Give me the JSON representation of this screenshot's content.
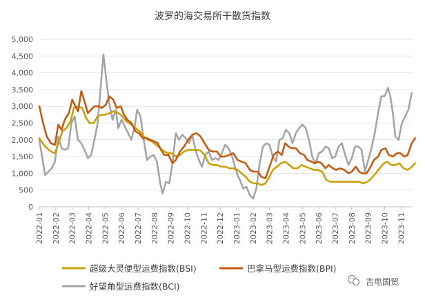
{
  "chart_data": {
    "type": "line",
    "title": "波罗的海交易所干散货指数",
    "xlabel": "",
    "ylabel": "",
    "ylim": [
      0,
      5000
    ],
    "y_ticks": [
      "0",
      "500",
      "1,000",
      "1,500",
      "2,000",
      "2,500",
      "3,000",
      "3,500",
      "4,000",
      "4,500",
      "5,000"
    ],
    "x_ticks": [
      "2022-01",
      "2022-02",
      "2022-03",
      "2022-04",
      "2022-05",
      "2022-06",
      "2022-07",
      "2022-08",
      "2022-09",
      "2022-10",
      "2022-11",
      "2022-12",
      "2023-01",
      "2023-02",
      "2023-03",
      "2023-04",
      "2023-05",
      "2023-06",
      "2023-07",
      "2023-08",
      "2023-09",
      "2023-10",
      "2023-11"
    ],
    "x_range": [
      0,
      22.7
    ],
    "grid": "horizontal",
    "legend_position": "bottom",
    "series": [
      {
        "name": "超级大灵便型运费指数(BSI)",
        "color": "#C9A008",
        "points": [
          [
            0,
            2050
          ],
          [
            0.35,
            1800
          ],
          [
            0.7,
            1650
          ],
          [
            0.95,
            1600
          ],
          [
            1.2,
            1950
          ],
          [
            1.4,
            2250
          ],
          [
            1.65,
            2350
          ],
          [
            1.9,
            2550
          ],
          [
            2.1,
            2950
          ],
          [
            2.35,
            3000
          ],
          [
            2.6,
            2950
          ],
          [
            2.85,
            2650
          ],
          [
            3.05,
            2500
          ],
          [
            3.3,
            2500
          ],
          [
            3.55,
            2700
          ],
          [
            3.8,
            2750
          ],
          [
            4.0,
            2750
          ],
          [
            4.3,
            2800
          ],
          [
            4.5,
            2850
          ],
          [
            4.8,
            2800
          ],
          [
            5.05,
            2700
          ],
          [
            5.3,
            2550
          ],
          [
            5.6,
            2450
          ],
          [
            5.85,
            2350
          ],
          [
            6.1,
            2250
          ],
          [
            6.35,
            2100
          ],
          [
            6.6,
            2000
          ],
          [
            6.85,
            1950
          ],
          [
            7.1,
            1850
          ],
          [
            7.35,
            1750
          ],
          [
            7.6,
            1650
          ],
          [
            7.85,
            1600
          ],
          [
            8.05,
            1600
          ],
          [
            8.3,
            1500
          ],
          [
            8.55,
            1550
          ],
          [
            8.8,
            1650
          ],
          [
            9.05,
            1700
          ],
          [
            9.3,
            1700
          ],
          [
            9.55,
            1700
          ],
          [
            9.8,
            1680
          ],
          [
            10.05,
            1550
          ],
          [
            10.3,
            1300
          ],
          [
            10.55,
            1250
          ],
          [
            10.8,
            1250
          ],
          [
            11.05,
            1200
          ],
          [
            11.3,
            1200
          ],
          [
            11.55,
            1150
          ],
          [
            11.8,
            1150
          ],
          [
            12.05,
            1100
          ],
          [
            12.3,
            1000
          ],
          [
            12.55,
            900
          ],
          [
            12.8,
            750
          ],
          [
            13.05,
            700
          ],
          [
            13.3,
            700
          ],
          [
            13.5,
            650
          ],
          [
            13.75,
            700
          ],
          [
            14.0,
            900
          ],
          [
            14.2,
            1100
          ],
          [
            14.45,
            1200
          ],
          [
            14.7,
            1300
          ],
          [
            14.95,
            1350
          ],
          [
            15.2,
            1250
          ],
          [
            15.45,
            1150
          ],
          [
            15.7,
            1150
          ],
          [
            15.95,
            1250
          ],
          [
            16.2,
            1200
          ],
          [
            16.45,
            1150
          ],
          [
            16.7,
            1100
          ],
          [
            16.95,
            1100
          ],
          [
            17.2,
            1050
          ],
          [
            17.45,
            800
          ],
          [
            17.7,
            750
          ],
          [
            17.95,
            750
          ],
          [
            18.2,
            750
          ],
          [
            18.45,
            750
          ],
          [
            18.7,
            750
          ],
          [
            18.95,
            750
          ],
          [
            19.2,
            750
          ],
          [
            19.45,
            750
          ],
          [
            19.7,
            700
          ],
          [
            19.95,
            750
          ],
          [
            20.2,
            850
          ],
          [
            20.45,
            1000
          ],
          [
            20.7,
            1150
          ],
          [
            20.95,
            1300
          ],
          [
            21.15,
            1350
          ],
          [
            21.4,
            1250
          ],
          [
            21.65,
            1250
          ],
          [
            21.9,
            1300
          ],
          [
            22.15,
            1150
          ],
          [
            22.4,
            1100
          ],
          [
            22.65,
            1200
          ],
          [
            22.85,
            1300
          ]
        ]
      },
      {
        "name": "巴拿马型运费指数(BPI)",
        "color": "#C55A11",
        "points": [
          [
            0,
            3000
          ],
          [
            0.2,
            2550
          ],
          [
            0.45,
            2100
          ],
          [
            0.7,
            1900
          ],
          [
            0.95,
            1850
          ],
          [
            1.15,
            2450
          ],
          [
            1.35,
            2300
          ],
          [
            1.55,
            2600
          ],
          [
            1.8,
            2800
          ],
          [
            2.0,
            3200
          ],
          [
            2.15,
            3050
          ],
          [
            2.35,
            2850
          ],
          [
            2.55,
            3450
          ],
          [
            2.75,
            3150
          ],
          [
            2.95,
            2800
          ],
          [
            3.15,
            2900
          ],
          [
            3.35,
            3000
          ],
          [
            3.6,
            3000
          ],
          [
            3.8,
            2950
          ],
          [
            4.05,
            3050
          ],
          [
            4.25,
            3300
          ],
          [
            4.5,
            3200
          ],
          [
            4.7,
            2950
          ],
          [
            4.95,
            3000
          ],
          [
            5.15,
            2750
          ],
          [
            5.35,
            2600
          ],
          [
            5.6,
            2500
          ],
          [
            5.85,
            2250
          ],
          [
            6.05,
            2200
          ],
          [
            6.3,
            2050
          ],
          [
            6.55,
            2050
          ],
          [
            6.75,
            2000
          ],
          [
            7.0,
            1950
          ],
          [
            7.2,
            1900
          ],
          [
            7.4,
            1700
          ],
          [
            7.6,
            1550
          ],
          [
            7.85,
            1550
          ],
          [
            8.1,
            1300
          ],
          [
            8.3,
            1400
          ],
          [
            8.55,
            1650
          ],
          [
            8.8,
            1800
          ],
          [
            9.05,
            2000
          ],
          [
            9.3,
            2150
          ],
          [
            9.55,
            2200
          ],
          [
            9.8,
            2100
          ],
          [
            10.05,
            1900
          ],
          [
            10.3,
            1700
          ],
          [
            10.55,
            1650
          ],
          [
            10.8,
            1650
          ],
          [
            11.05,
            1500
          ],
          [
            11.3,
            1500
          ],
          [
            11.55,
            1550
          ],
          [
            11.8,
            1600
          ],
          [
            12.05,
            1400
          ],
          [
            12.3,
            1350
          ],
          [
            12.55,
            1300
          ],
          [
            12.8,
            1100
          ],
          [
            13.05,
            1050
          ],
          [
            13.3,
            1050
          ],
          [
            13.5,
            900
          ],
          [
            13.75,
            850
          ],
          [
            14.0,
            1200
          ],
          [
            14.25,
            1550
          ],
          [
            14.5,
            1650
          ],
          [
            14.75,
            1550
          ],
          [
            14.95,
            1900
          ],
          [
            15.15,
            1800
          ],
          [
            15.35,
            1750
          ],
          [
            15.6,
            1750
          ],
          [
            15.85,
            1600
          ],
          [
            16.1,
            1550
          ],
          [
            16.3,
            1400
          ],
          [
            16.55,
            1350
          ],
          [
            16.75,
            1300
          ],
          [
            16.95,
            1350
          ],
          [
            17.15,
            1300
          ],
          [
            17.4,
            1150
          ],
          [
            17.6,
            1250
          ],
          [
            17.85,
            1150
          ],
          [
            18.05,
            1100
          ],
          [
            18.3,
            1150
          ],
          [
            18.55,
            1100
          ],
          [
            18.8,
            1000
          ],
          [
            19.0,
            1050
          ],
          [
            19.25,
            1200
          ],
          [
            19.45,
            1050
          ],
          [
            19.65,
            1000
          ],
          [
            19.9,
            1000
          ],
          [
            20.15,
            1200
          ],
          [
            20.35,
            1400
          ],
          [
            20.6,
            1500
          ],
          [
            20.8,
            1700
          ],
          [
            21.05,
            1750
          ],
          [
            21.25,
            1550
          ],
          [
            21.5,
            1500
          ],
          [
            21.75,
            1600
          ],
          [
            21.95,
            1600
          ],
          [
            22.2,
            1500
          ],
          [
            22.4,
            1550
          ],
          [
            22.65,
            1900
          ],
          [
            22.85,
            2050
          ]
        ]
      },
      {
        "name": "好望角型运费指数(BCI)",
        "color": "#A5A5A5",
        "points": [
          [
            0,
            2000
          ],
          [
            0.2,
            1400
          ],
          [
            0.35,
            950
          ],
          [
            0.55,
            1050
          ],
          [
            0.75,
            1150
          ],
          [
            0.95,
            1350
          ],
          [
            1.15,
            2100
          ],
          [
            1.35,
            1750
          ],
          [
            1.55,
            1700
          ],
          [
            1.75,
            1750
          ],
          [
            1.95,
            2500
          ],
          [
            2.15,
            2700
          ],
          [
            2.35,
            2000
          ],
          [
            2.55,
            1900
          ],
          [
            2.75,
            1700
          ],
          [
            2.95,
            1450
          ],
          [
            3.15,
            1550
          ],
          [
            3.35,
            2000
          ],
          [
            3.55,
            2500
          ],
          [
            3.75,
            3700
          ],
          [
            3.9,
            4550
          ],
          [
            4.05,
            3900
          ],
          [
            4.25,
            3100
          ],
          [
            4.45,
            2600
          ],
          [
            4.65,
            2900
          ],
          [
            4.8,
            2350
          ],
          [
            5.0,
            2600
          ],
          [
            5.2,
            2400
          ],
          [
            5.4,
            2200
          ],
          [
            5.6,
            2000
          ],
          [
            5.8,
            2400
          ],
          [
            5.95,
            2900
          ],
          [
            6.15,
            2700
          ],
          [
            6.35,
            2000
          ],
          [
            6.55,
            1400
          ],
          [
            6.75,
            1500
          ],
          [
            6.95,
            1550
          ],
          [
            7.15,
            1350
          ],
          [
            7.35,
            700
          ],
          [
            7.5,
            400
          ],
          [
            7.7,
            750
          ],
          [
            7.9,
            700
          ],
          [
            8.1,
            1300
          ],
          [
            8.3,
            2200
          ],
          [
            8.5,
            2000
          ],
          [
            8.7,
            2150
          ],
          [
            8.9,
            2050
          ],
          [
            9.1,
            1900
          ],
          [
            9.3,
            2150
          ],
          [
            9.5,
            1700
          ],
          [
            9.7,
            1400
          ],
          [
            9.9,
            1200
          ],
          [
            10.1,
            1550
          ],
          [
            10.3,
            1650
          ],
          [
            10.5,
            1400
          ],
          [
            10.7,
            1450
          ],
          [
            10.9,
            1400
          ],
          [
            11.1,
            1600
          ],
          [
            11.3,
            1850
          ],
          [
            11.5,
            1750
          ],
          [
            11.7,
            1550
          ],
          [
            11.9,
            1200
          ],
          [
            12.05,
            950
          ],
          [
            12.2,
            800
          ],
          [
            12.4,
            550
          ],
          [
            12.6,
            600
          ],
          [
            12.8,
            350
          ],
          [
            13.0,
            250
          ],
          [
            13.2,
            550
          ],
          [
            13.4,
            1300
          ],
          [
            13.6,
            1800
          ],
          [
            13.8,
            1900
          ],
          [
            14.0,
            1850
          ],
          [
            14.2,
            1500
          ],
          [
            14.4,
            1350
          ],
          [
            14.6,
            2000
          ],
          [
            14.8,
            2050
          ],
          [
            15.0,
            2300
          ],
          [
            15.2,
            2200
          ],
          [
            15.4,
            1900
          ],
          [
            15.6,
            2200
          ],
          [
            15.8,
            2350
          ],
          [
            16.0,
            2450
          ],
          [
            16.2,
            2350
          ],
          [
            16.4,
            2000
          ],
          [
            16.6,
            1500
          ],
          [
            16.8,
            1300
          ],
          [
            17.0,
            1600
          ],
          [
            17.2,
            1650
          ],
          [
            17.4,
            1800
          ],
          [
            17.6,
            1750
          ],
          [
            17.8,
            1450
          ],
          [
            18.0,
            1500
          ],
          [
            18.2,
            1800
          ],
          [
            18.4,
            1900
          ],
          [
            18.6,
            1550
          ],
          [
            18.8,
            1250
          ],
          [
            19.0,
            1450
          ],
          [
            19.2,
            1800
          ],
          [
            19.4,
            1800
          ],
          [
            19.6,
            1700
          ],
          [
            19.8,
            1050
          ],
          [
            20.0,
            1400
          ],
          [
            20.2,
            1750
          ],
          [
            20.4,
            2200
          ],
          [
            20.6,
            2800
          ],
          [
            20.8,
            3300
          ],
          [
            21.0,
            3300
          ],
          [
            21.2,
            3550
          ],
          [
            21.35,
            3300
          ],
          [
            21.5,
            2800
          ],
          [
            21.65,
            2100
          ],
          [
            21.85,
            2000
          ],
          [
            22.05,
            2500
          ],
          [
            22.25,
            2700
          ],
          [
            22.45,
            2900
          ],
          [
            22.65,
            3400
          ]
        ]
      }
    ]
  },
  "watermark": "吉电国贸",
  "watermark_icon": "wechat-icon"
}
